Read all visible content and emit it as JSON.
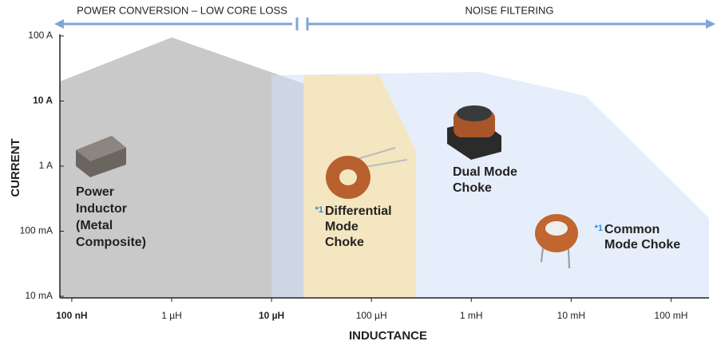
{
  "chart_data": {
    "type": "area",
    "x_label": "INDUCTANCE",
    "y_label": "CURRENT",
    "x_log": true,
    "y_log": true,
    "xlim": [
      7.6e-08,
      0.24
    ],
    "ylim": [
      0.01,
      100
    ],
    "xticks": [
      {
        "value": 1e-07,
        "label": "100 nH"
      },
      {
        "value": 1e-06,
        "label": "1 µH"
      },
      {
        "value": 1e-05,
        "label": "10 µH"
      },
      {
        "value": 0.0001,
        "label": "100 µH"
      },
      {
        "value": 0.001,
        "label": "1 mH"
      },
      {
        "value": 0.01,
        "label": "10 mH"
      },
      {
        "value": 0.1,
        "label": "100 mH"
      }
    ],
    "yticks": [
      {
        "value": 100,
        "label": "100 A"
      },
      {
        "value": 10,
        "label": "10 A"
      },
      {
        "value": 1,
        "label": "1 A"
      },
      {
        "value": 0.1,
        "label": "100 mA"
      },
      {
        "value": 0.01,
        "label": "10 mA"
      }
    ],
    "bands": [
      "POWER CONVERSION – LOW CORE LOSS",
      "NOISE FILTERING"
    ],
    "series": [
      {
        "color": "#c9c9c9",
        "x": [
          7.6e-08,
          1e-06,
          0.0001
        ],
        "values": [
          20,
          95,
          8
        ]
      },
      {
        "color": "#cfe0f5",
        "x": [
          1e-05,
          0.0012,
          0.014,
          0.24
        ],
        "values": [
          25,
          28,
          12,
          0.16
        ]
      },
      {
        "color": "#f4e6c0",
        "x": [
          2.1e-05,
          0.00012,
          0.00028
        ],
        "values": [
          25,
          25,
          1.7
        ]
      }
    ],
    "annotations": [
      {
        "lines": [
          "Power",
          "Inductor",
          "(Metal",
          "Composite)"
        ]
      },
      {
        "note": "*1",
        "lines": [
          "Differential",
          "Mode",
          "Choke"
        ]
      },
      {
        "lines": [
          "Dual Mode",
          "Choke"
        ]
      },
      {
        "note": "*1",
        "lines": [
          "Common",
          "Mode Choke"
        ]
      }
    ]
  }
}
